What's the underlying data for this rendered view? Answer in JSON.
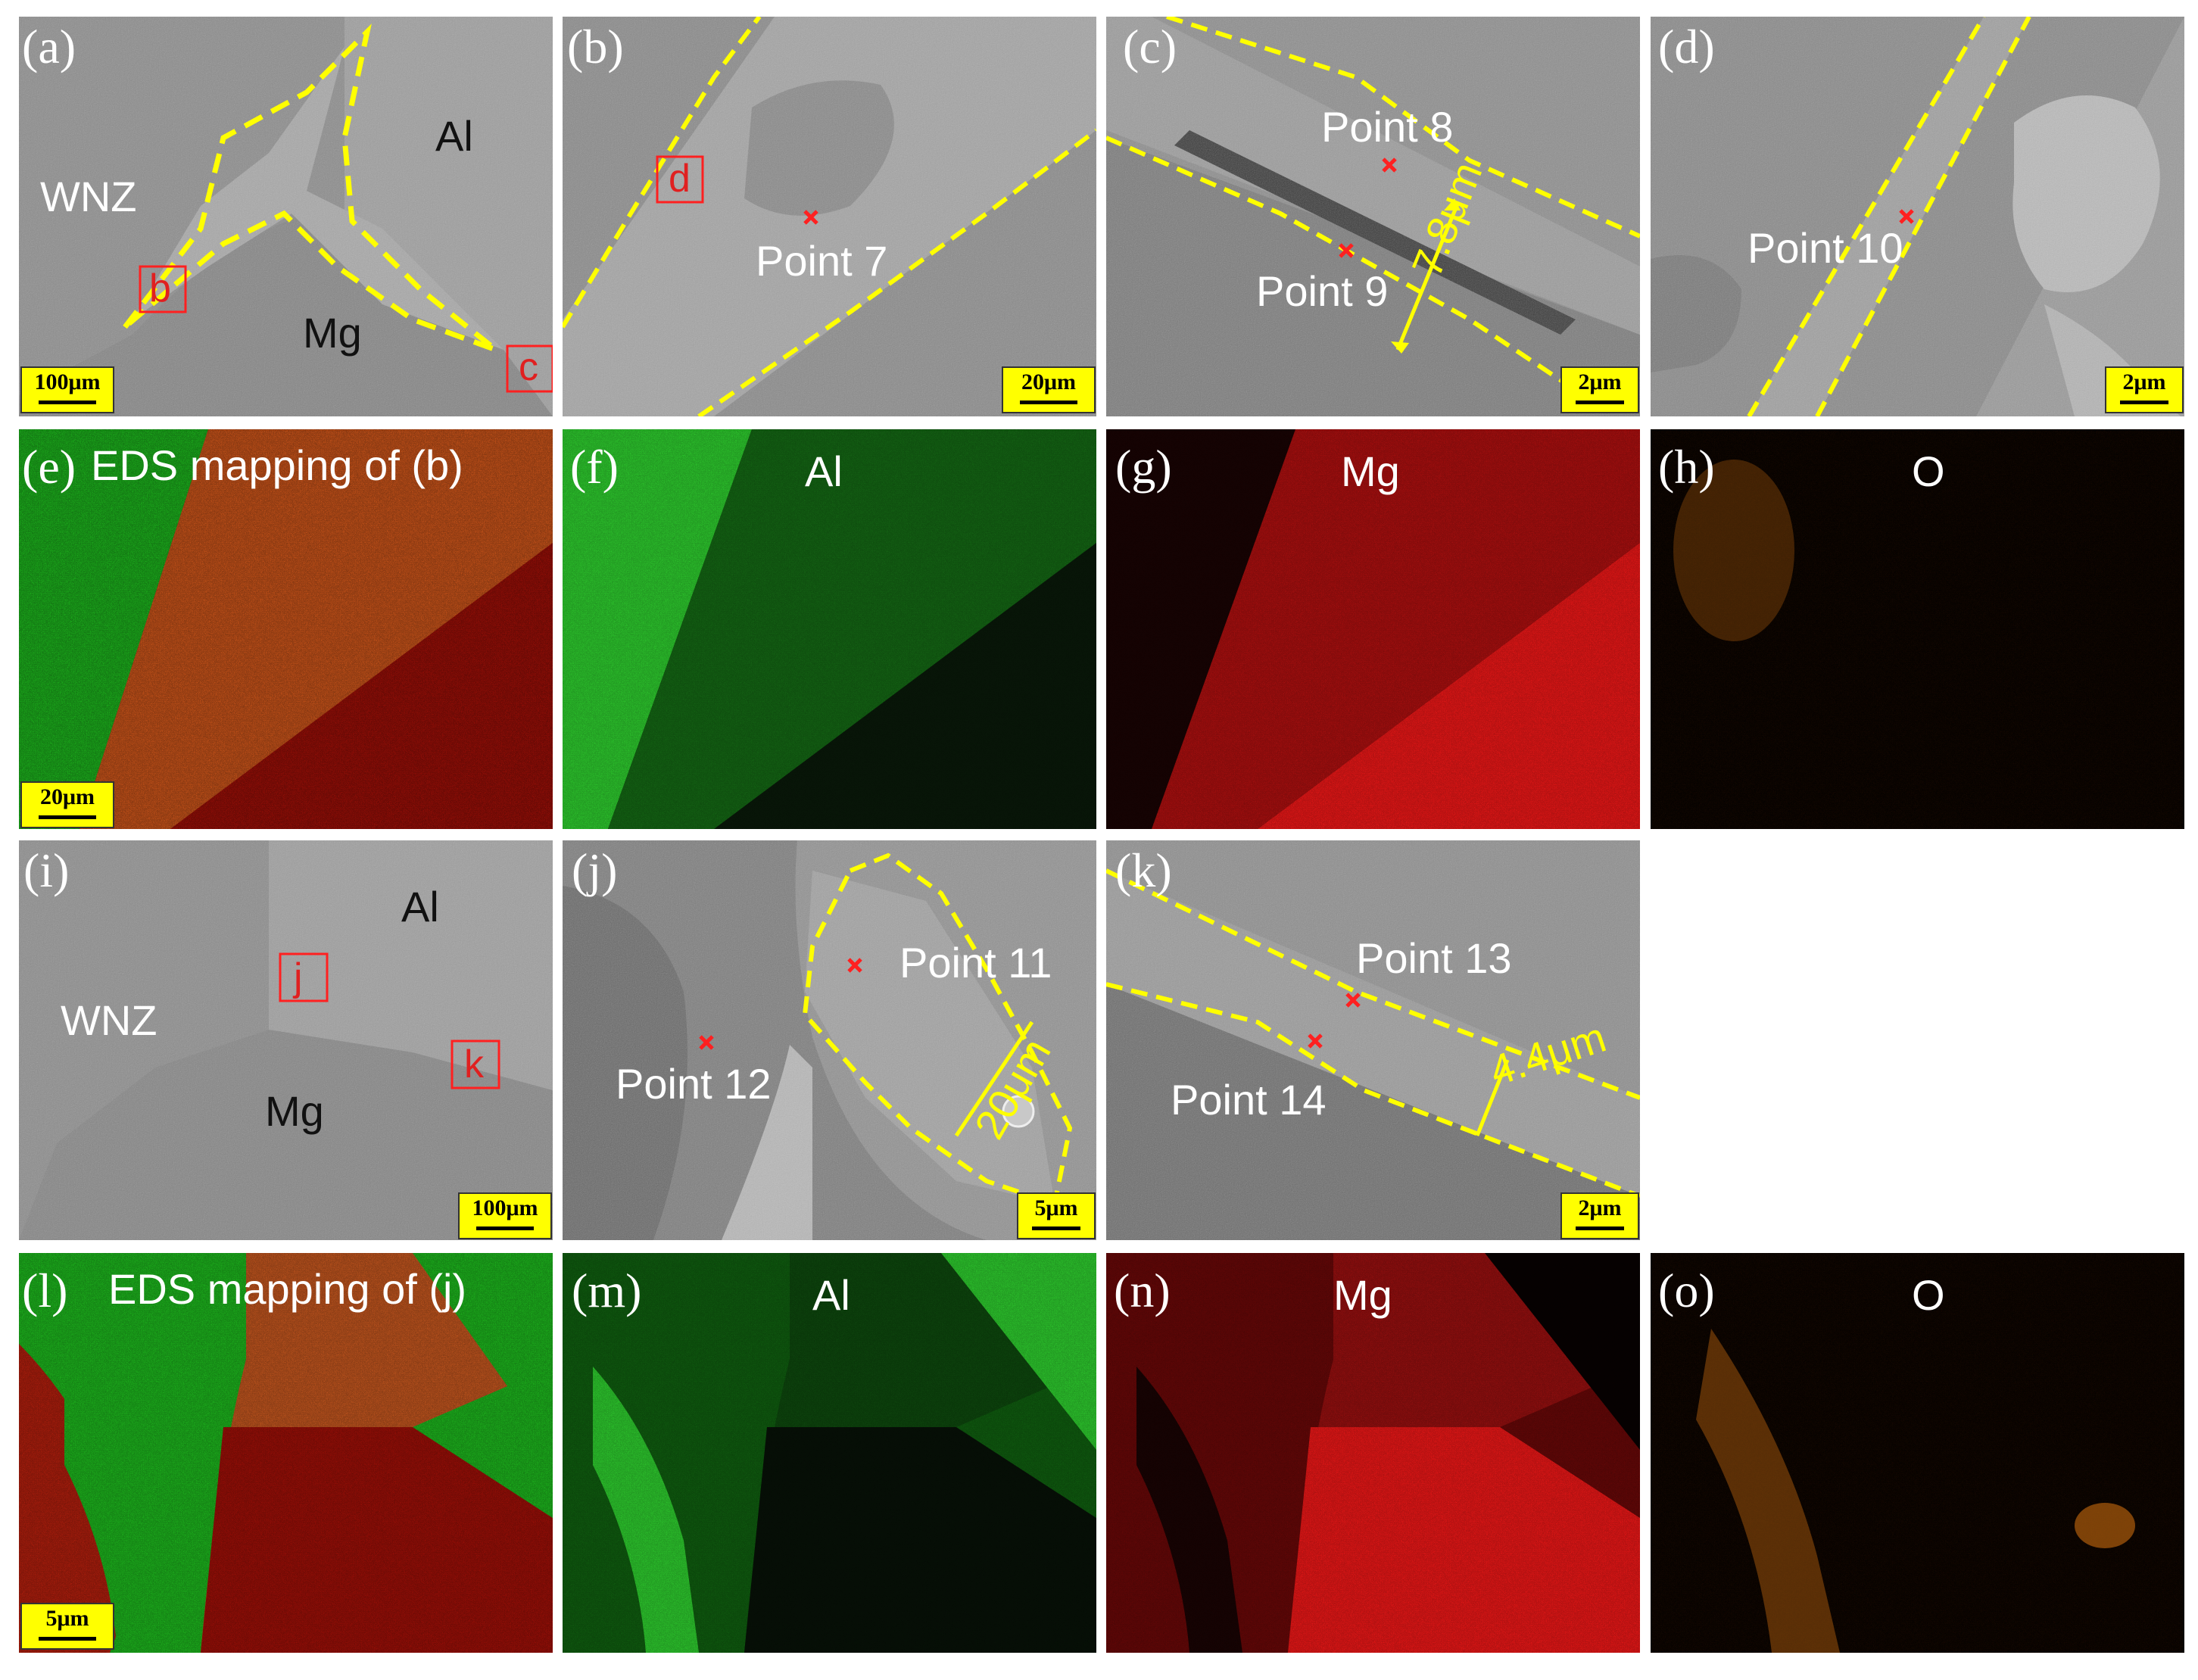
{
  "colors": {
    "al_green": "#1fbf1f",
    "mg_red": "#e01010",
    "o_orange": "#f08010",
    "highlight_yellow": "#ffff00",
    "marker_red": "#ff2020"
  },
  "panels": {
    "a": {
      "label": "(a)",
      "scale": "100μm",
      "wnz": "WNZ",
      "al": "Al",
      "mg": "Mg",
      "box_b": "b",
      "box_c": "c"
    },
    "b": {
      "label": "(b)",
      "scale": "20μm",
      "point": "Point 7",
      "box_d": "d"
    },
    "c": {
      "label": "(c)",
      "scale": "2μm",
      "point8": "Point 8",
      "point9": "Point 9",
      "thickness": "7.8μm"
    },
    "d": {
      "label": "(d)",
      "scale": "2μm",
      "point": "Point 10"
    },
    "e": {
      "label": "(e)",
      "title": "EDS mapping of (b)",
      "scale": "20μm"
    },
    "f": {
      "label": "(f)",
      "element": "Al"
    },
    "g": {
      "label": "(g)",
      "element": "Mg"
    },
    "h": {
      "label": "(h)",
      "element": "O"
    },
    "i": {
      "label": "(i)",
      "scale": "100μm",
      "wnz": "WNZ",
      "al": "Al",
      "mg": "Mg",
      "box_j": "j",
      "box_k": "k"
    },
    "j": {
      "label": "(j)",
      "scale": "5μm",
      "point11": "Point 11",
      "point12": "Point 12",
      "thickness": "20μm"
    },
    "k": {
      "label": "(k)",
      "scale": "2μm",
      "point13": "Point 13",
      "point14": "Point 14",
      "thickness": "4.4μm"
    },
    "l": {
      "label": "(l)",
      "title": "EDS mapping of (j)",
      "scale": "5μm"
    },
    "m": {
      "label": "(m)",
      "element": "Al"
    },
    "n": {
      "label": "(n)",
      "element": "Mg"
    },
    "o": {
      "label": "(o)",
      "element": "O"
    }
  }
}
